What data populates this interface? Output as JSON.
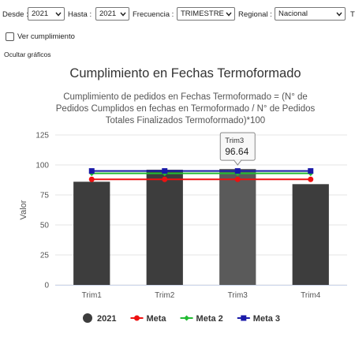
{
  "filters": [
    {
      "label": "Desde :",
      "value": "2021"
    },
    {
      "label": "Hasta :",
      "value": "2021"
    },
    {
      "label": "Frecuencia :",
      "value": "TRIMESTRE"
    },
    {
      "label": "Regional :",
      "value": "Nacional"
    }
  ],
  "cut_label": "T",
  "checkbox_label": "Ver cumplimiento",
  "link": "Ocultar gráficos",
  "chart_data": {
    "type": "bar",
    "title": "Cumplimiento en Fechas Termoformado",
    "subtitle": "Cumplimiento de pedidos en Fechas Termoformado = (N° de Pedidos Cumplidos en fechas en Termoformado / N° de Pedidos Totales Finalizados Termoformado)*100",
    "y_label": "Valor",
    "categories": [
      "Trim1",
      "Trim2",
      "Trim3",
      "Trim4"
    ],
    "series": [
      {
        "name": "2021",
        "type": "bar",
        "color": "#3d3d3d",
        "values": [
          86,
          96,
          96.64,
          84
        ]
      },
      {
        "name": "Meta",
        "type": "line",
        "marker": "circle",
        "color": "#ee1111",
        "values": [
          88,
          88,
          88,
          88
        ]
      },
      {
        "name": "Meta 2",
        "type": "line",
        "marker": "diamond",
        "color": "#22bb33",
        "values": [
          93,
          93,
          93,
          93
        ]
      },
      {
        "name": "Meta 3",
        "type": "line",
        "marker": "square",
        "color": "#1a1aa8",
        "values": [
          95,
          95,
          95,
          95
        ]
      }
    ],
    "ylim": [
      0,
      125
    ],
    "yticks": [
      0,
      25,
      50,
      75,
      100,
      125
    ],
    "grid": true,
    "legend": "bottom",
    "highlight_index": 2,
    "highlight_color": "#5a5a5a"
  }
}
